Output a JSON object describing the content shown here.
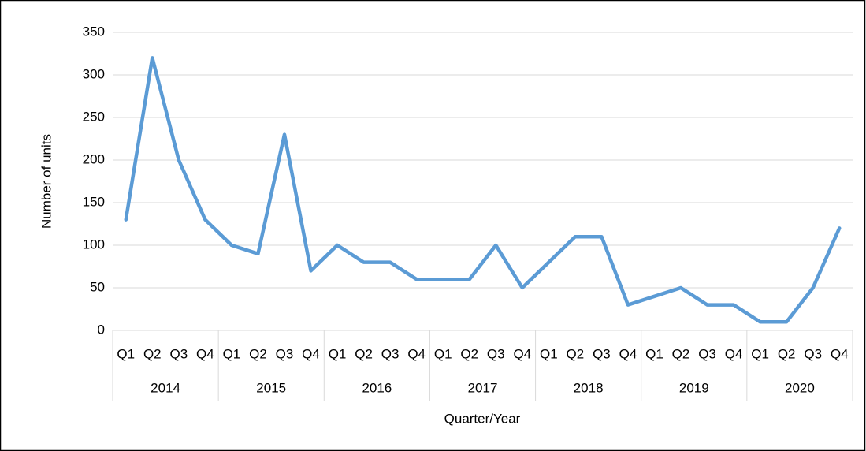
{
  "chart_data": {
    "type": "line",
    "categories": [
      "Q1",
      "Q2",
      "Q3",
      "Q4",
      "Q1",
      "Q2",
      "Q3",
      "Q4",
      "Q1",
      "Q2",
      "Q3",
      "Q4",
      "Q1",
      "Q2",
      "Q3",
      "Q4",
      "Q1",
      "Q2",
      "Q3",
      "Q4",
      "Q1",
      "Q2",
      "Q3",
      "Q4",
      "Q1",
      "Q2",
      "Q3",
      "Q4"
    ],
    "category_groups": [
      "2014",
      "2015",
      "2016",
      "2017",
      "2018",
      "2019",
      "2020"
    ],
    "series": [
      {
        "color": "#5b9bd5",
        "values": [
          130,
          320,
          200,
          130,
          100,
          90,
          230,
          70,
          100,
          80,
          80,
          60,
          60,
          60,
          100,
          50,
          80,
          110,
          110,
          30,
          40,
          50,
          30,
          30,
          10,
          10,
          50,
          120
        ]
      }
    ],
    "x_label": "Quarter/Year",
    "y_label": "Number of units",
    "ylim": [
      0,
      350
    ],
    "yticks": [
      0,
      50,
      100,
      150,
      200,
      250,
      300,
      350
    ],
    "grid": true
  }
}
